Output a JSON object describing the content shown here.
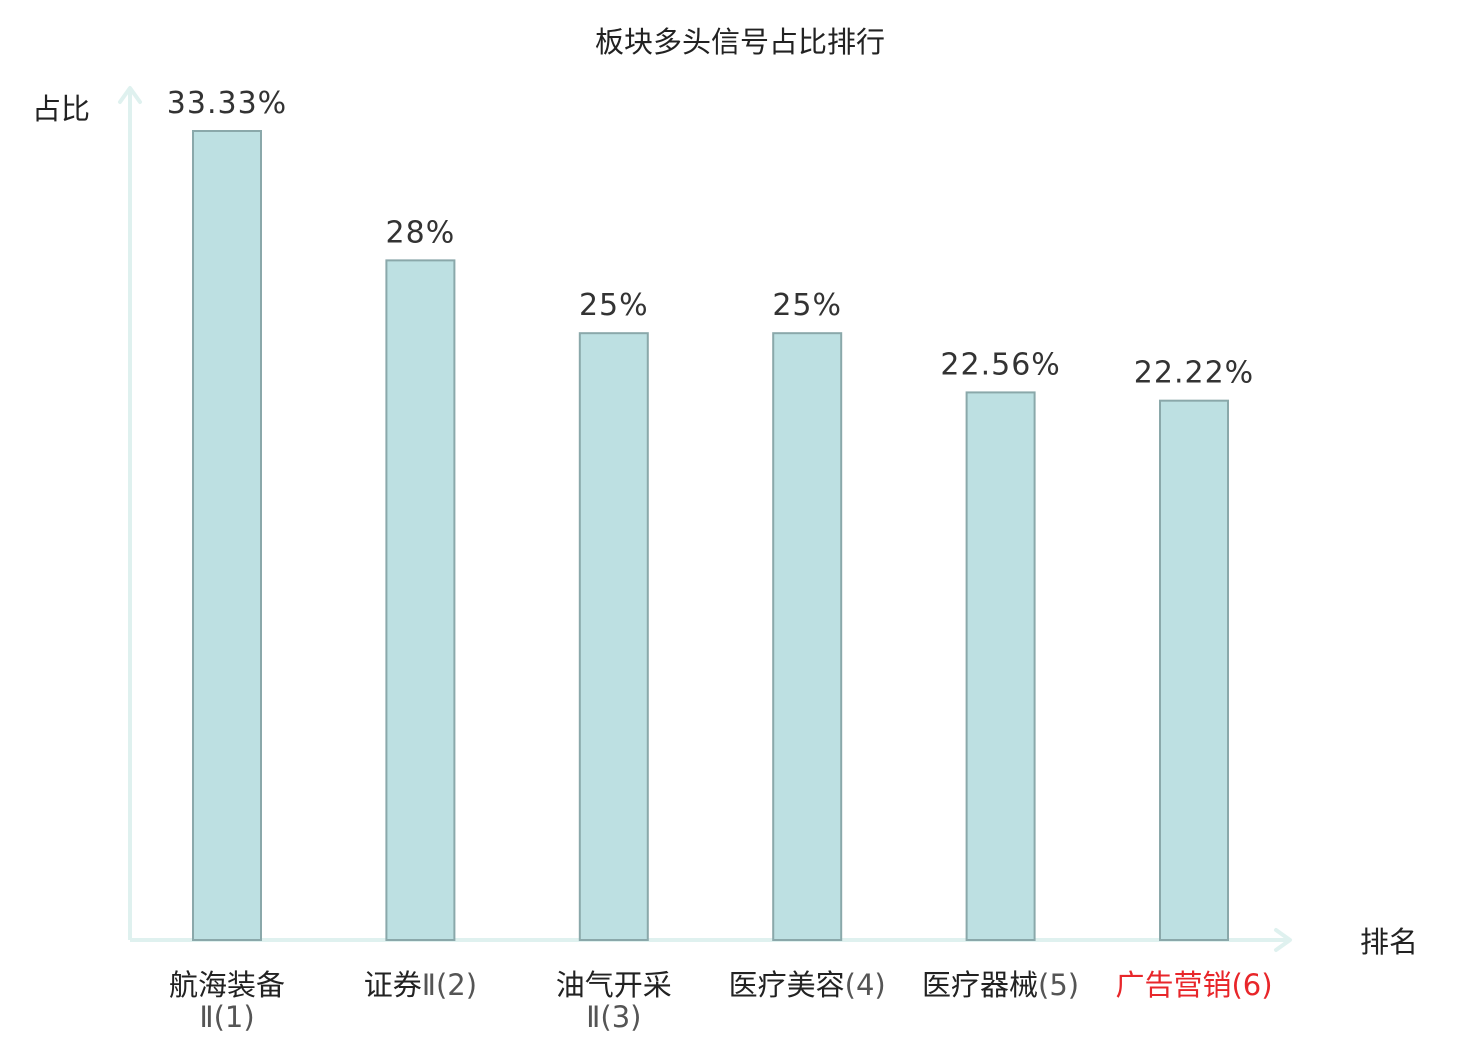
{
  "chart_data": {
    "type": "bar",
    "title": "板块多头信号占比排行",
    "ylabel": "占比",
    "xlabel": "排名",
    "categories": [
      "航海装备Ⅱ(1)",
      "证券Ⅱ(2)",
      "油气开采Ⅱ(3)",
      "医疗美容(4)",
      "医疗器械(5)",
      "广告营销(6)"
    ],
    "values": [
      33.33,
      28,
      25,
      25,
      22.56,
      22.22
    ],
    "value_labels": [
      "33.33%",
      "28%",
      "25%",
      "25%",
      "22.56%",
      "22.22%"
    ],
    "category_label_parts": [
      [
        {
          "t": "航海装备",
          "c": "#222222"
        },
        {
          "t": "Ⅱ(1)",
          "c": "#555555",
          "br": true
        }
      ],
      [
        {
          "t": "证券",
          "c": "#222222"
        },
        {
          "t": "Ⅱ(2)",
          "c": "#555555"
        }
      ],
      [
        {
          "t": "油气开采",
          "c": "#222222"
        },
        {
          "t": "Ⅱ(3)",
          "c": "#555555",
          "br": true
        }
      ],
      [
        {
          "t": "医疗美容",
          "c": "#222222"
        },
        {
          "t": "(4)",
          "c": "#555555"
        }
      ],
      [
        {
          "t": "医疗器械",
          "c": "#222222"
        },
        {
          "t": "(5)",
          "c": "#555555"
        }
      ],
      [
        {
          "t": "广告营销",
          "c": "#e8262a"
        },
        {
          "t": "(6)",
          "c": "#e8262a"
        }
      ]
    ],
    "ylim": [
      0,
      35
    ],
    "grid": false,
    "colors": {
      "bar_fill": "#bde0e2",
      "bar_stroke": "#8aa8aa",
      "axis": "#dff1ef",
      "text": "#222222",
      "value_label": "#333333",
      "highlight": "#e8262a"
    }
  }
}
